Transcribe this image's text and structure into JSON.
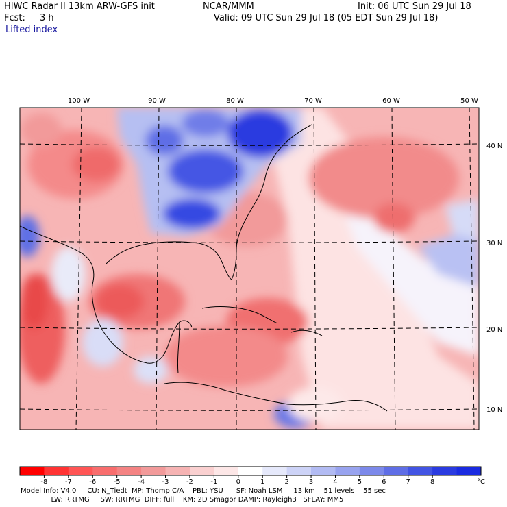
{
  "header": {
    "title_left": "HIWC Radar II 13km ARW-GFS init",
    "title_center": "NCAR/MMM",
    "init": "Init: 06 UTC Sun 29 Jul 18",
    "fcst_label": "Fcst:",
    "fcst_value": "3 h",
    "valid": "Valid: 09 UTC Sun 29 Jul 18 (05 EDT Sun 29 Jul 18)",
    "field": "Lifted index"
  },
  "map": {
    "lon_labels": [
      "100 W",
      "90 W",
      "80 W",
      "70 W",
      "60 W",
      "50 W"
    ],
    "lat_labels": [
      "40 N",
      "30 N",
      "20 N",
      "10 N"
    ],
    "colors": {
      "strong_negative": "#ff1a1a",
      "negative": "#f47a7a",
      "weak_negative": "#fbd6d6",
      "neutral": "#ffffff",
      "positive": "#9aa6f0",
      "strong_positive": "#1a2be0"
    }
  },
  "colorbar": {
    "ticks": [
      "-8",
      "-7",
      "-6",
      "-5",
      "-4",
      "-3",
      "-2",
      "-1",
      "0",
      "1",
      "2",
      "3",
      "4",
      "5",
      "6",
      "7",
      "8"
    ],
    "unit": "°C",
    "colors": [
      "#ff0000",
      "#ff3333",
      "#ff5555",
      "#f86d6d",
      "#f48383",
      "#f29a9a",
      "#f6b3b3",
      "#fad0d0",
      "#fde7e7",
      "#ffffff",
      "#e6e9fb",
      "#cdd3f7",
      "#b2bbf3",
      "#98a3ef",
      "#7c89ea",
      "#5f6ee6",
      "#4254e3",
      "#2a3be0",
      "#1a2be0"
    ]
  },
  "footer": {
    "line1": "Model Info: V4.0     CU: N_Tiedt  MP: Thomp C/A    PBL: YSU      SF: Noah LSM     13 km    51 levels    55 sec",
    "line2": "              LW: RRTMG     SW: RRTMG  DIFF: full    KM: 2D Smagor DAMP: Rayleigh3   SFLAY: MM5"
  }
}
